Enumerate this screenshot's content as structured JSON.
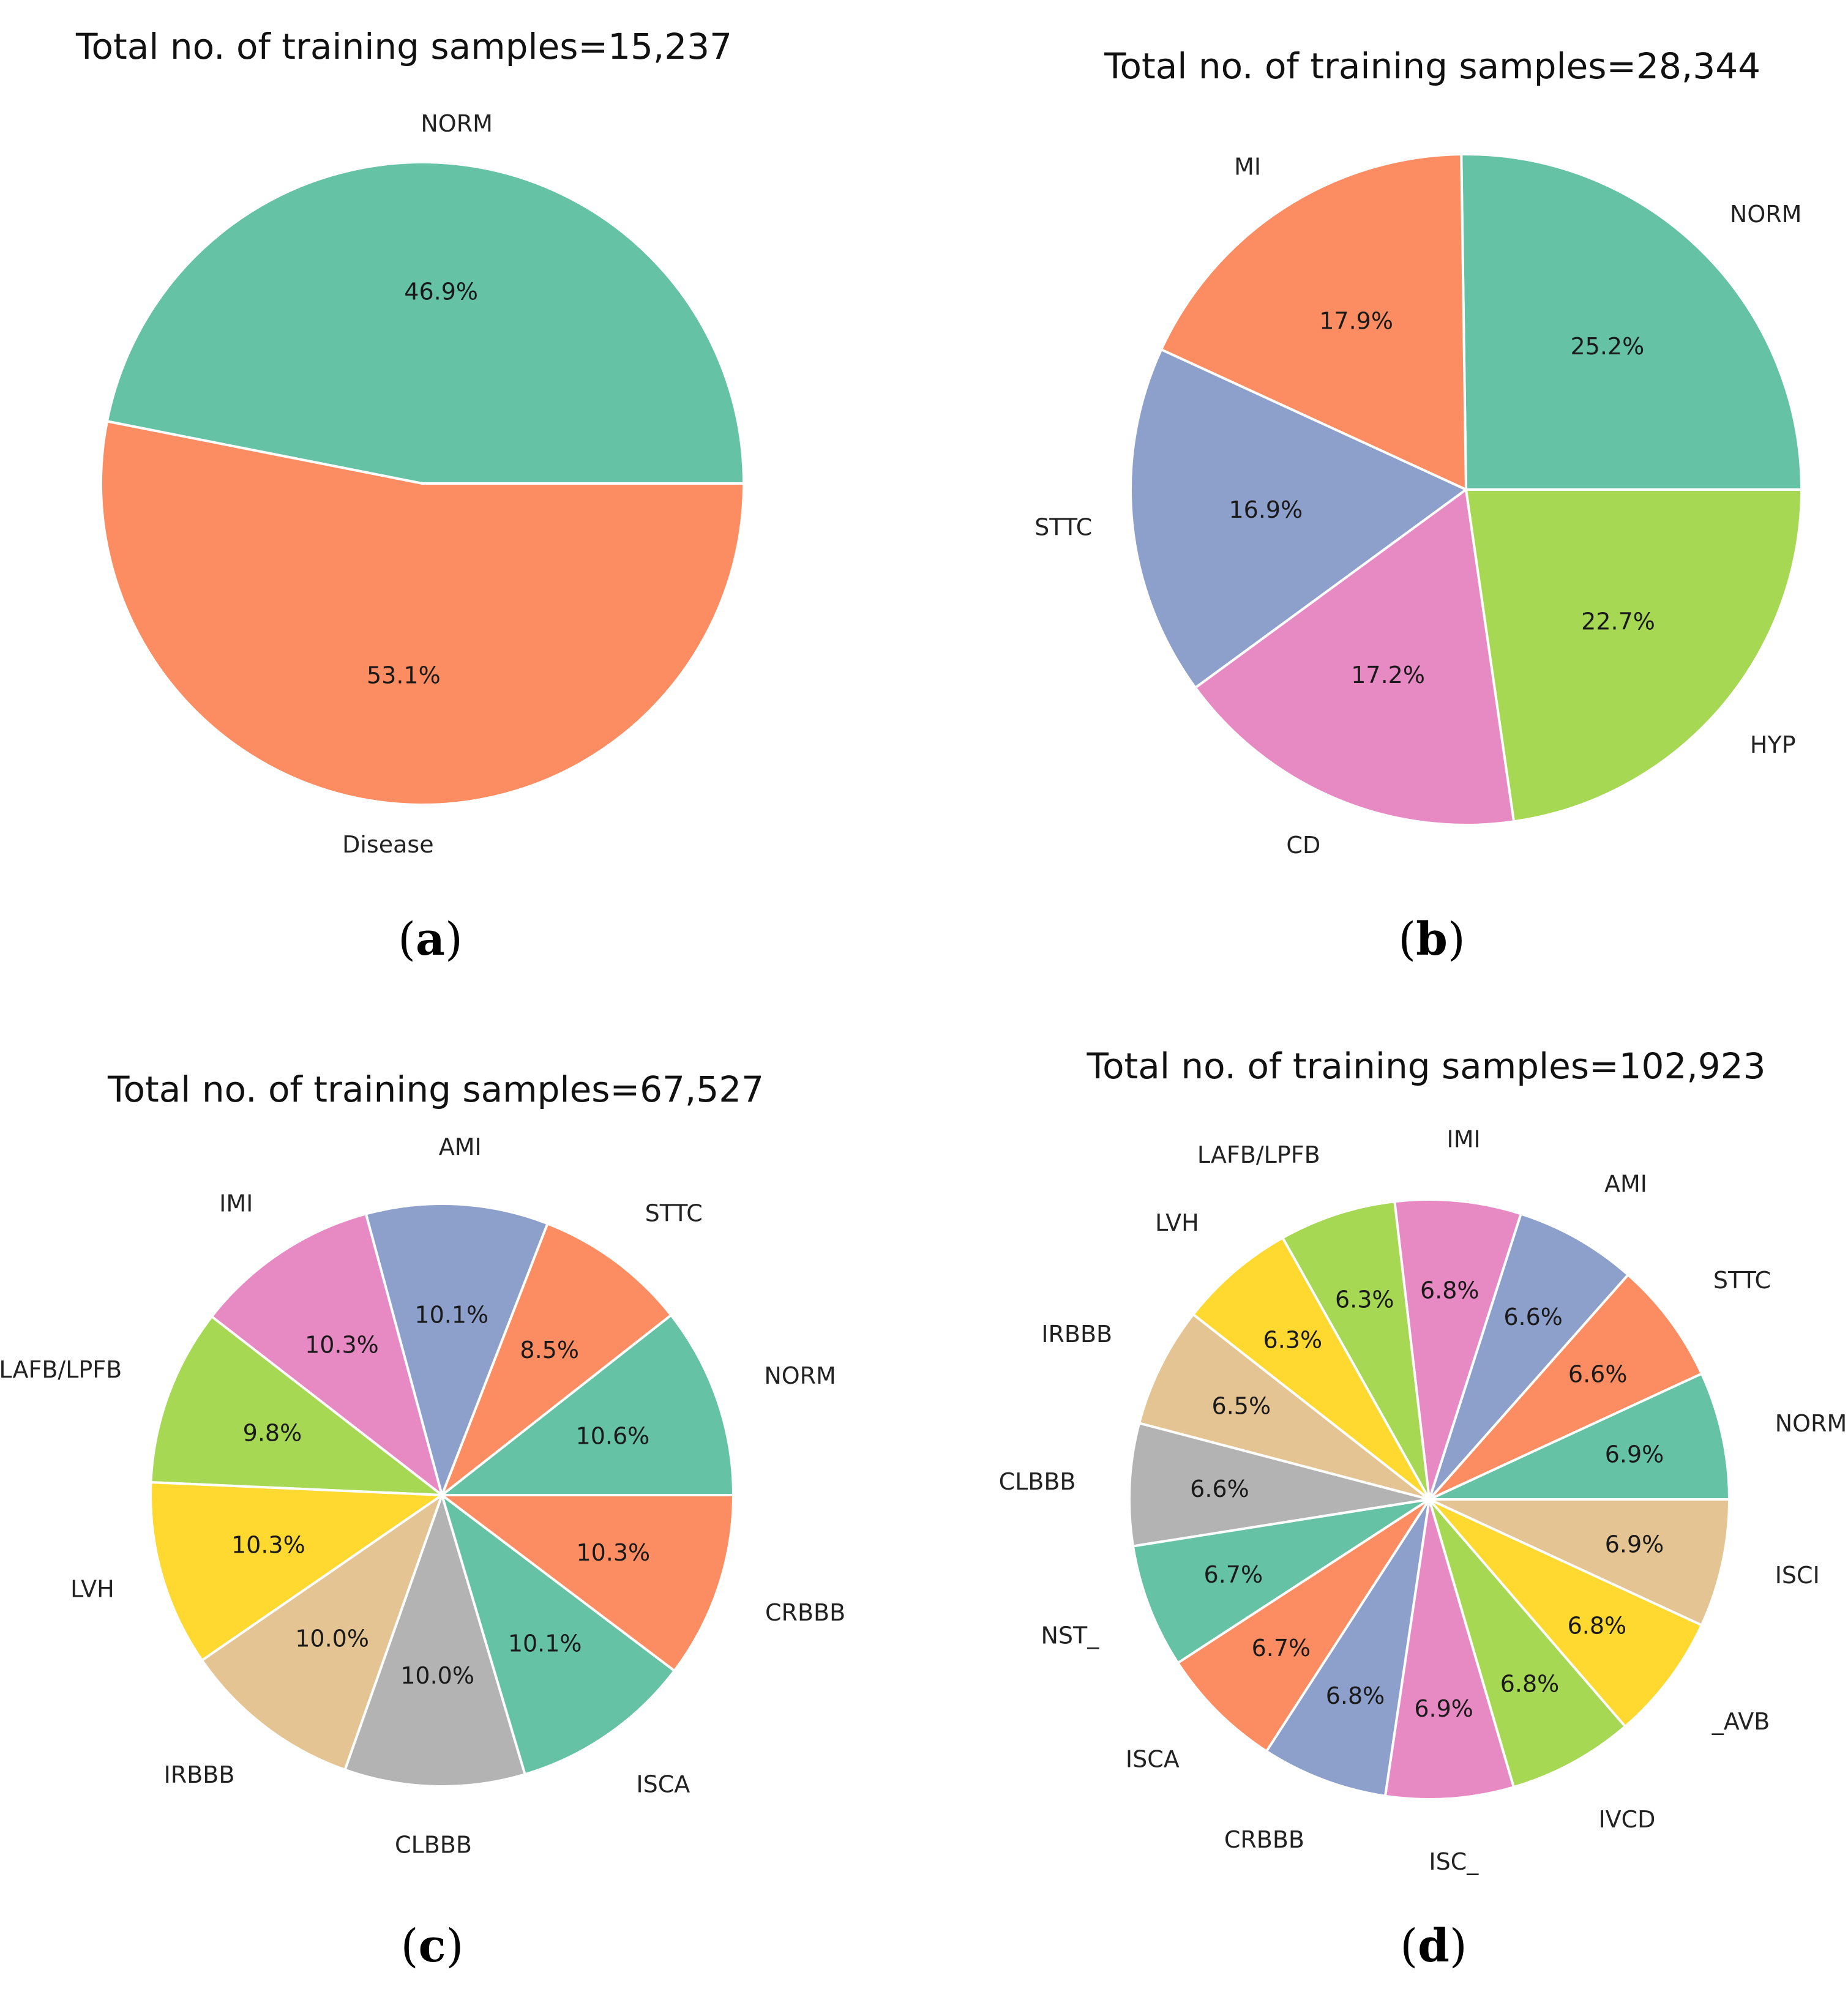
{
  "figure": {
    "panels": [
      {
        "id": "a",
        "caption_letter": "a",
        "title": "Total no. of training samples=15,237"
      },
      {
        "id": "b",
        "caption_letter": "b",
        "title": "Total no. of training samples=28,344"
      },
      {
        "id": "c",
        "caption_letter": "c",
        "title": "Total no. of training samples=67,527"
      },
      {
        "id": "d",
        "caption_letter": "d",
        "title": "Total no. of training samples=102,923"
      }
    ]
  },
  "chart_data": [
    {
      "type": "pie",
      "title": "Total no. of training samples=15,237",
      "total_samples": 15237,
      "start_angle_deg": 0,
      "direction": "counterclockwise",
      "labels": [
        "NORM",
        "Disease"
      ],
      "values": [
        46.9,
        53.1
      ],
      "value_labels": [
        "46.9%",
        "53.1%"
      ],
      "colors": [
        "#66c2a5",
        "#fc8d62"
      ]
    },
    {
      "type": "pie",
      "title": "Total no. of training samples=28,344",
      "total_samples": 28344,
      "start_angle_deg": 0,
      "direction": "counterclockwise",
      "labels": [
        "NORM",
        "MI",
        "STTC",
        "CD",
        "HYP"
      ],
      "values": [
        25.2,
        17.9,
        16.9,
        17.2,
        22.7
      ],
      "value_labels": [
        "25.2%",
        "17.9%",
        "16.9%",
        "17.2%",
        "22.7%"
      ],
      "colors": [
        "#66c2a5",
        "#fc8d62",
        "#8da0cb",
        "#e78ac3",
        "#a6d854"
      ]
    },
    {
      "type": "pie",
      "title": "Total no. of training samples=67,527",
      "total_samples": 67527,
      "start_angle_deg": 0,
      "direction": "counterclockwise",
      "labels": [
        "NORM",
        "STTC",
        "AMI",
        "IMI",
        "LAFB/LPFB",
        "LVH",
        "IRBBB",
        "CLBBB",
        "ISCA",
        "CRBBB"
      ],
      "values": [
        10.6,
        8.5,
        10.1,
        10.3,
        9.8,
        10.3,
        10.0,
        10.0,
        10.1,
        10.3
      ],
      "value_labels": [
        "10.6%",
        "8.5%",
        "10.1%",
        "10.3%",
        "9.8%",
        "10.3%",
        "10.0%",
        "10.0%",
        "10.1%",
        "10.3%"
      ],
      "colors": [
        "#66c2a5",
        "#fc8d62",
        "#8da0cb",
        "#e78ac3",
        "#a6d854",
        "#ffd92f",
        "#e5c494",
        "#b3b3b3",
        "#66c2a5",
        "#fc8d62"
      ]
    },
    {
      "type": "pie",
      "title": "Total no. of training samples=102,923",
      "total_samples": 102923,
      "start_angle_deg": 0,
      "direction": "counterclockwise",
      "labels": [
        "NORM",
        "STTC",
        "AMI",
        "IMI",
        "LAFB/LPFB",
        "LVH",
        "IRBBB",
        "CLBBB",
        "NST_",
        "ISCA",
        "CRBBB",
        "ISC_",
        "IVCD",
        "_AVB",
        "ISCI"
      ],
      "values": [
        6.9,
        6.6,
        6.6,
        6.8,
        6.3,
        6.3,
        6.5,
        6.6,
        6.7,
        6.7,
        6.8,
        6.9,
        6.8,
        6.8,
        6.9
      ],
      "value_labels": [
        "6.9%",
        "6.6%",
        "6.6%",
        "6.8%",
        "6.3%",
        "6.3%",
        "6.5%",
        "6.6%",
        "6.7%",
        "6.7%",
        "6.8%",
        "6.9%",
        "6.8%",
        "6.8%",
        "6.9%"
      ],
      "colors": [
        "#66c2a5",
        "#fc8d62",
        "#8da0cb",
        "#e78ac3",
        "#a6d854",
        "#ffd92f",
        "#e5c494",
        "#b3b3b3",
        "#66c2a5",
        "#fc8d62",
        "#8da0cb",
        "#e78ac3",
        "#a6d854",
        "#ffd92f",
        "#e5c494"
      ]
    }
  ]
}
